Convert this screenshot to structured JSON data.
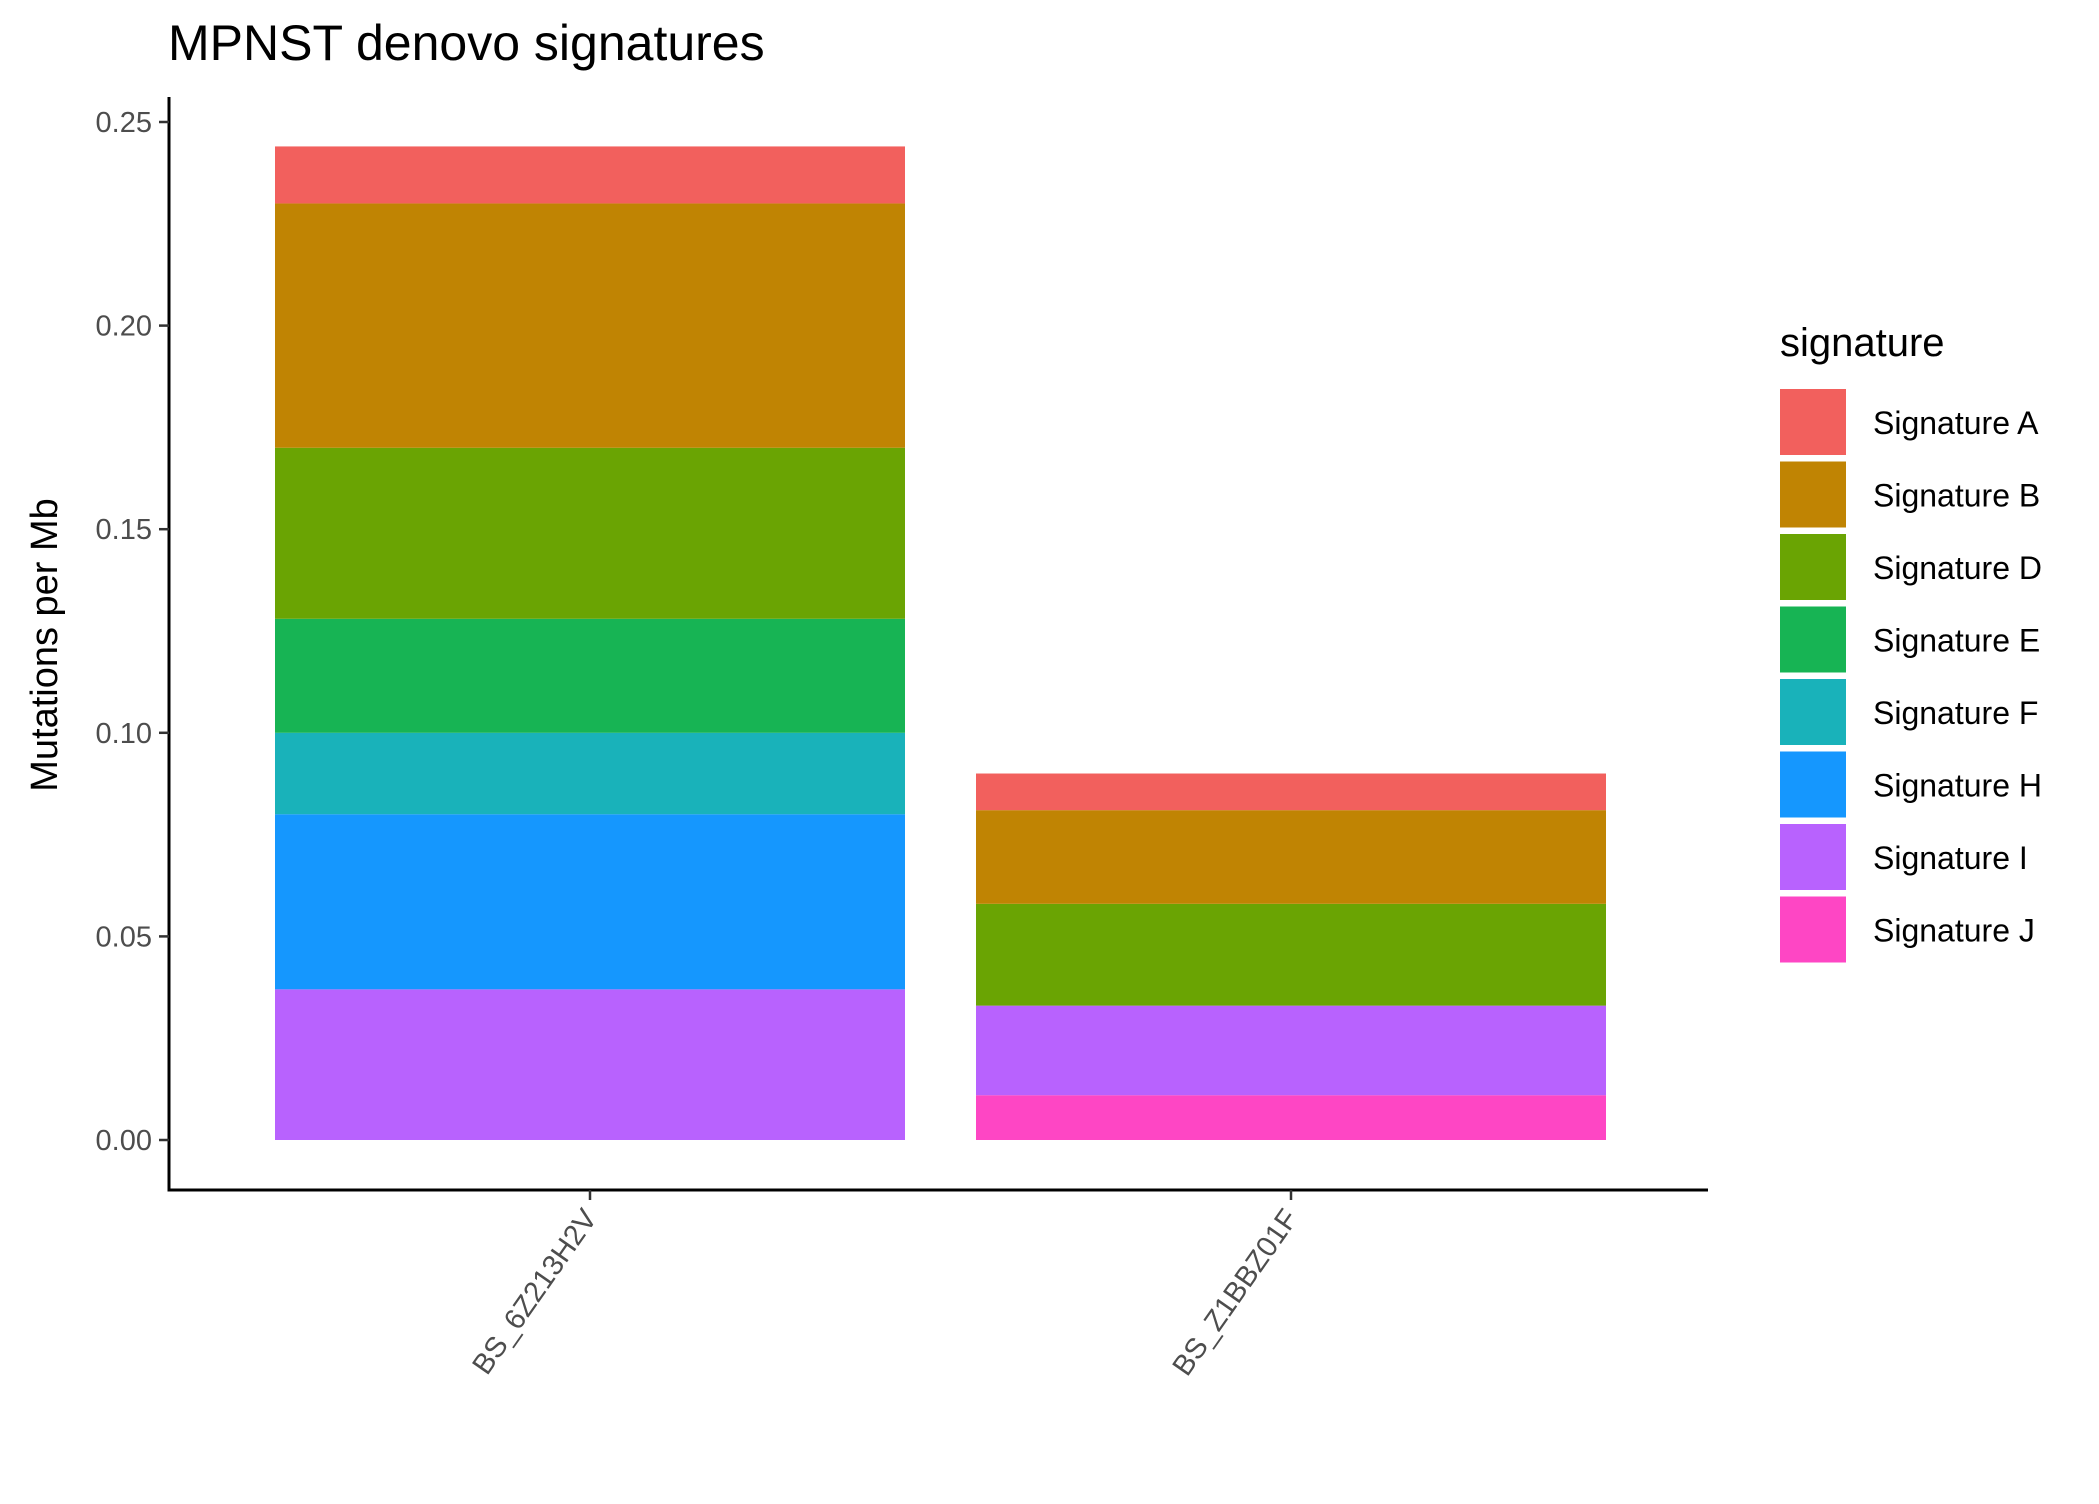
{
  "chart_data": {
    "type": "bar",
    "stacked": true,
    "title": "MPNST denovo signatures",
    "xlabel": "",
    "ylabel": "Mutations per Mb",
    "ylim": [
      -0.012,
      0.256
    ],
    "yticks": [
      0.0,
      0.05,
      0.1,
      0.15,
      0.2,
      0.25
    ],
    "ytick_labels": [
      "0.00",
      "0.05",
      "0.10",
      "0.15",
      "0.20",
      "0.25"
    ],
    "categories": [
      "BS_6Z213H2V",
      "BS_Z1BBZ01F"
    ],
    "legend": {
      "title": "signature",
      "position": "right"
    },
    "grid": false,
    "series": [
      {
        "name": "Signature A",
        "color": "#F8766D",
        "values": [
          0.014,
          0.009
        ]
      },
      {
        "name": "Signature B",
        "color": "#C49A00",
        "values": [
          0.06,
          0.023
        ]
      },
      {
        "name": "Signature D",
        "color": "#53B400",
        "values": [
          0.042,
          0.025
        ]
      },
      {
        "name": "Signature E",
        "color": "#00C094",
        "values": [
          0.028,
          0.0
        ]
      },
      {
        "name": "Signature F",
        "color": "#00B6EB",
        "values": [
          0.02,
          0.0
        ]
      },
      {
        "name": "Signature H",
        "color": "#06A4FF",
        "values": [
          0.043,
          0.0
        ]
      },
      {
        "name": "Signature I",
        "color": "#A58AFF",
        "values": [
          0.037,
          0.022
        ]
      },
      {
        "name": "Signature J",
        "color": "#FB61D7",
        "values": [
          0.0,
          0.011
        ]
      }
    ],
    "stack_order_bottom_to_top": [
      "Signature J",
      "Signature I",
      "Signature H",
      "Signature F",
      "Signature E",
      "Signature D",
      "Signature B",
      "Signature A"
    ],
    "render_colors": {
      "Signature A": "#F2605D",
      "Signature B": "#C08403",
      "Signature D": "#6AA403",
      "Signature E": "#17B454",
      "Signature F": "#19B2BA",
      "Signature H": "#1597FE",
      "Signature I": "#B862FE",
      "Signature J": "#FE46C4"
    }
  }
}
